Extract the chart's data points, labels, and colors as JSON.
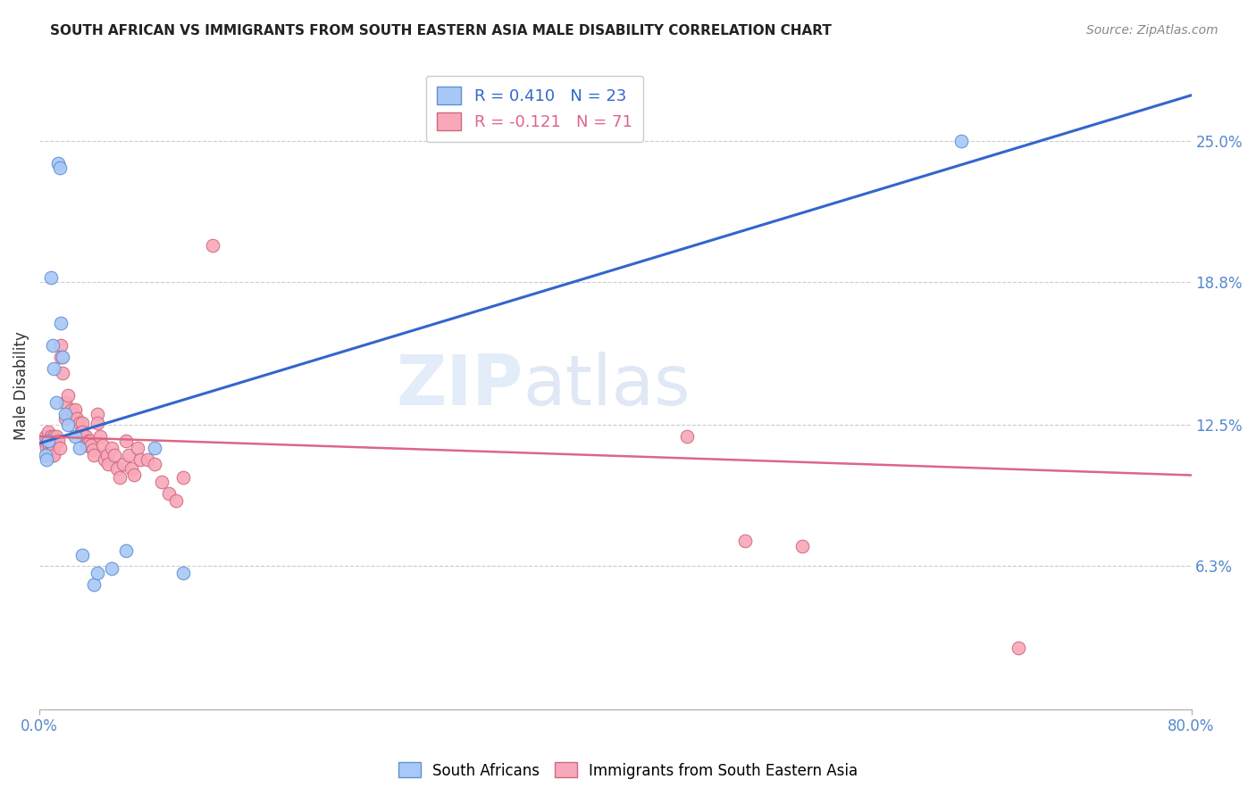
{
  "title": "SOUTH AFRICAN VS IMMIGRANTS FROM SOUTH EASTERN ASIA MALE DISABILITY CORRELATION CHART",
  "source": "Source: ZipAtlas.com",
  "ylabel": "Male Disability",
  "right_yticks": [
    "25.0%",
    "18.8%",
    "12.5%",
    "6.3%"
  ],
  "right_ytick_vals": [
    0.25,
    0.188,
    0.125,
    0.063
  ],
  "xlim": [
    0.0,
    0.8
  ],
  "ylim": [
    0.0,
    0.285
  ],
  "legend_r1": "R = 0.410   N = 23",
  "legend_r2": "R = -0.121   N = 71",
  "sa_color": "#a8c8f8",
  "imm_color": "#f8a8b8",
  "sa_edge": "#6090d0",
  "imm_edge": "#d06880",
  "trendline_sa_color": "#3366cc",
  "trendline_imm_color": "#dd6688",
  "watermark": "ZIPatlas",
  "sa_trend_x0": 0.0,
  "sa_trend_y0": 0.117,
  "sa_trend_x1": 0.8,
  "sa_trend_y1": 0.27,
  "imm_trend_x0": 0.0,
  "imm_trend_y0": 0.12,
  "imm_trend_x1": 0.8,
  "imm_trend_y1": 0.103,
  "south_africans_x": [
    0.004,
    0.005,
    0.006,
    0.008,
    0.009,
    0.01,
    0.012,
    0.013,
    0.014,
    0.015,
    0.016,
    0.018,
    0.02,
    0.025,
    0.028,
    0.03,
    0.038,
    0.04,
    0.05,
    0.06,
    0.08,
    0.1,
    0.64
  ],
  "south_africans_y": [
    0.112,
    0.11,
    0.118,
    0.19,
    0.16,
    0.15,
    0.135,
    0.24,
    0.238,
    0.17,
    0.155,
    0.13,
    0.125,
    0.12,
    0.115,
    0.068,
    0.055,
    0.06,
    0.062,
    0.07,
    0.115,
    0.06,
    0.25
  ],
  "immigrants_x": [
    0.003,
    0.004,
    0.005,
    0.006,
    0.006,
    0.007,
    0.007,
    0.007,
    0.008,
    0.008,
    0.009,
    0.009,
    0.01,
    0.01,
    0.01,
    0.01,
    0.011,
    0.012,
    0.013,
    0.014,
    0.015,
    0.015,
    0.016,
    0.018,
    0.018,
    0.02,
    0.02,
    0.022,
    0.024,
    0.025,
    0.026,
    0.028,
    0.029,
    0.03,
    0.03,
    0.032,
    0.033,
    0.034,
    0.035,
    0.036,
    0.037,
    0.038,
    0.04,
    0.04,
    0.042,
    0.044,
    0.045,
    0.047,
    0.048,
    0.05,
    0.052,
    0.054,
    0.056,
    0.058,
    0.06,
    0.062,
    0.064,
    0.066,
    0.068,
    0.07,
    0.075,
    0.08,
    0.085,
    0.09,
    0.095,
    0.1,
    0.12,
    0.45,
    0.49,
    0.53,
    0.68
  ],
  "immigrants_y": [
    0.118,
    0.12,
    0.115,
    0.118,
    0.122,
    0.118,
    0.115,
    0.113,
    0.12,
    0.118,
    0.115,
    0.112,
    0.12,
    0.118,
    0.115,
    0.112,
    0.118,
    0.12,
    0.118,
    0.115,
    0.16,
    0.155,
    0.148,
    0.135,
    0.128,
    0.138,
    0.13,
    0.132,
    0.13,
    0.132,
    0.128,
    0.126,
    0.122,
    0.126,
    0.122,
    0.12,
    0.116,
    0.118,
    0.118,
    0.116,
    0.114,
    0.112,
    0.13,
    0.126,
    0.12,
    0.116,
    0.11,
    0.112,
    0.108,
    0.115,
    0.112,
    0.106,
    0.102,
    0.108,
    0.118,
    0.112,
    0.106,
    0.103,
    0.115,
    0.11,
    0.11,
    0.108,
    0.1,
    0.095,
    0.092,
    0.102,
    0.204,
    0.12,
    0.074,
    0.072,
    0.027
  ]
}
